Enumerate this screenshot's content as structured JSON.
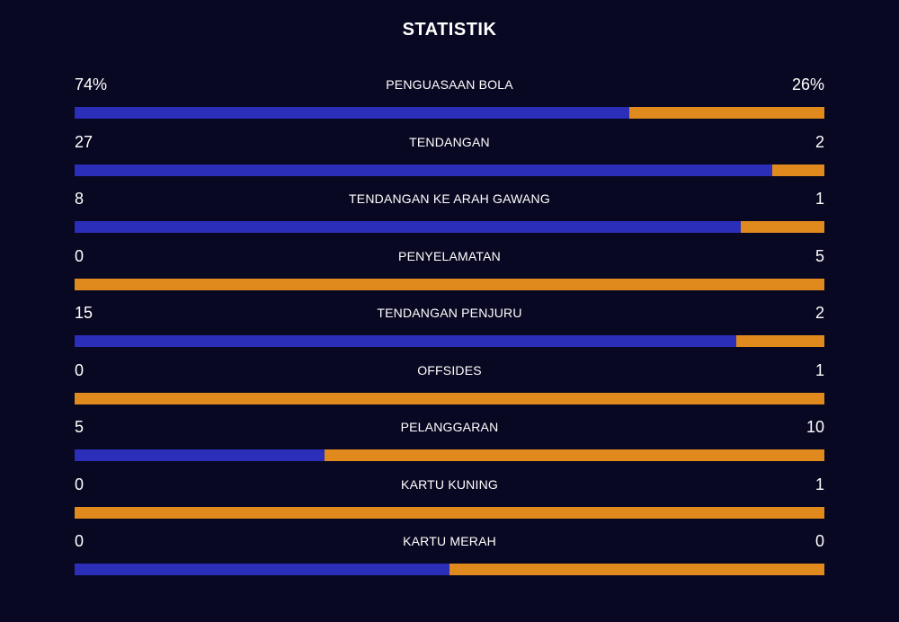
{
  "title": "STATISTIK",
  "colors": {
    "background": "#090822",
    "home": "#2a2eb8",
    "away": "#e08a1e"
  },
  "stats": [
    {
      "label": "PENGUASAAN BOLA",
      "home": "74%",
      "away": "26%",
      "home_share": 0.74
    },
    {
      "label": "TENDANGAN",
      "home": "27",
      "away": "2",
      "home_share": 0.931
    },
    {
      "label": "TENDANGAN KE ARAH GAWANG",
      "home": "8",
      "away": "1",
      "home_share": 0.889
    },
    {
      "label": "PENYELAMATAN",
      "home": "0",
      "away": "5",
      "home_share": 0.0
    },
    {
      "label": "TENDANGAN PENJURU",
      "home": "15",
      "away": "2",
      "home_share": 0.882
    },
    {
      "label": "OFFSIDES",
      "home": "0",
      "away": "1",
      "home_share": 0.0
    },
    {
      "label": "PELANGGARAN",
      "home": "5",
      "away": "10",
      "home_share": 0.333
    },
    {
      "label": "KARTU KUNING",
      "home": "0",
      "away": "1",
      "home_share": 0.0
    },
    {
      "label": "KARTU MERAH",
      "home": "0",
      "away": "0",
      "home_share": 0.5
    }
  ]
}
